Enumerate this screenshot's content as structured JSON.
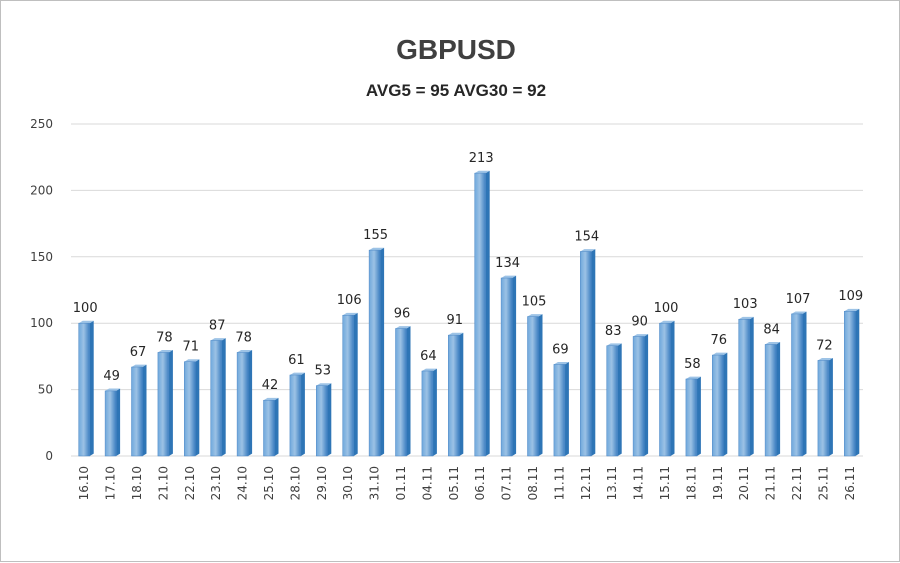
{
  "chart_data": {
    "type": "bar",
    "title": "GBPUSD",
    "subtitle": "AVG5 = 95 AVG30 = 92",
    "categories": [
      "16.10",
      "17.10",
      "18.10",
      "21.10",
      "22.10",
      "23.10",
      "24.10",
      "25.10",
      "28.10",
      "29.10",
      "30.10",
      "31.10",
      "01.11",
      "04.11",
      "05.11",
      "06.11",
      "07.11",
      "08.11",
      "11.11",
      "12.11",
      "13.11",
      "14.11",
      "15.11",
      "18.11",
      "19.11",
      "20.11",
      "21.11",
      "22.11",
      "25.11",
      "26.11"
    ],
    "values": [
      100,
      49,
      67,
      78,
      71,
      87,
      78,
      42,
      61,
      53,
      106,
      155,
      96,
      64,
      91,
      213,
      134,
      105,
      69,
      154,
      83,
      90,
      100,
      58,
      76,
      103,
      84,
      107,
      72,
      109
    ],
    "yticks": [
      0,
      50,
      100,
      150,
      200,
      250
    ],
    "ylim": [
      0,
      250
    ],
    "grid": true,
    "legend": "none",
    "colors": {
      "bar_light": "#9dc3e6",
      "bar_mid": "#5b9bd5",
      "bar_dark": "#2e75b6",
      "grid": "#d9d9d9"
    }
  }
}
